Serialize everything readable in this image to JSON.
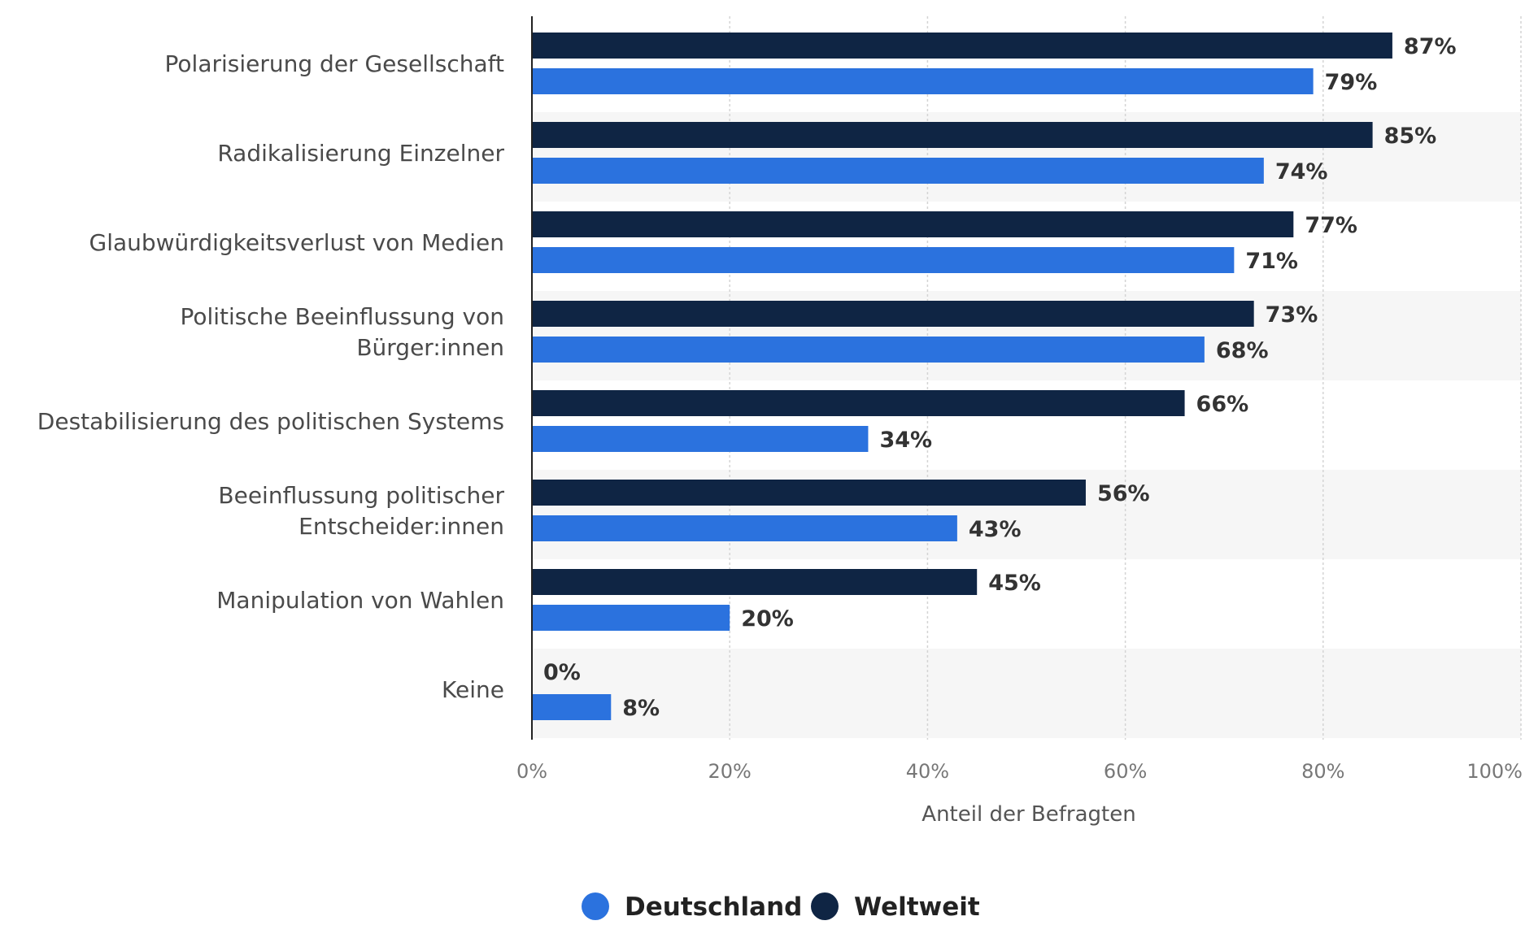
{
  "chart_data": {
    "type": "bar",
    "orientation": "horizontal",
    "categories": [
      [
        "Polarisierung der Gesellschaft"
      ],
      [
        "Radikalisierung Einzelner"
      ],
      [
        "Glaubwürdigkeitsverlust von Medien"
      ],
      [
        "Politische Beeinflussung von",
        "Bürger:innen"
      ],
      [
        "Destabilisierung des politischen Systems"
      ],
      [
        "Beeinflussung politischer",
        "Entscheider:innen"
      ],
      [
        "Manipulation von Wahlen"
      ],
      [
        "Keine"
      ]
    ],
    "series": [
      {
        "name": "Weltweit",
        "color": "#0f2544",
        "values": [
          87,
          85,
          77,
          73,
          66,
          56,
          45,
          0
        ]
      },
      {
        "name": "Deutschland",
        "color": "#2b72de",
        "values": [
          79,
          74,
          71,
          68,
          34,
          43,
          20,
          8
        ]
      }
    ],
    "value_suffix": "%",
    "xlabel": "Anteil der Befragten",
    "xlim": [
      0,
      100
    ],
    "xticks": [
      0,
      20,
      40,
      60,
      80,
      100
    ],
    "xtick_labels": [
      "0%",
      "20%",
      "40%",
      "60%",
      "80%",
      "100%"
    ],
    "grid": true,
    "legend_position": "bottom-center",
    "legend_order": [
      "Deutschland",
      "Weltweit"
    ]
  }
}
